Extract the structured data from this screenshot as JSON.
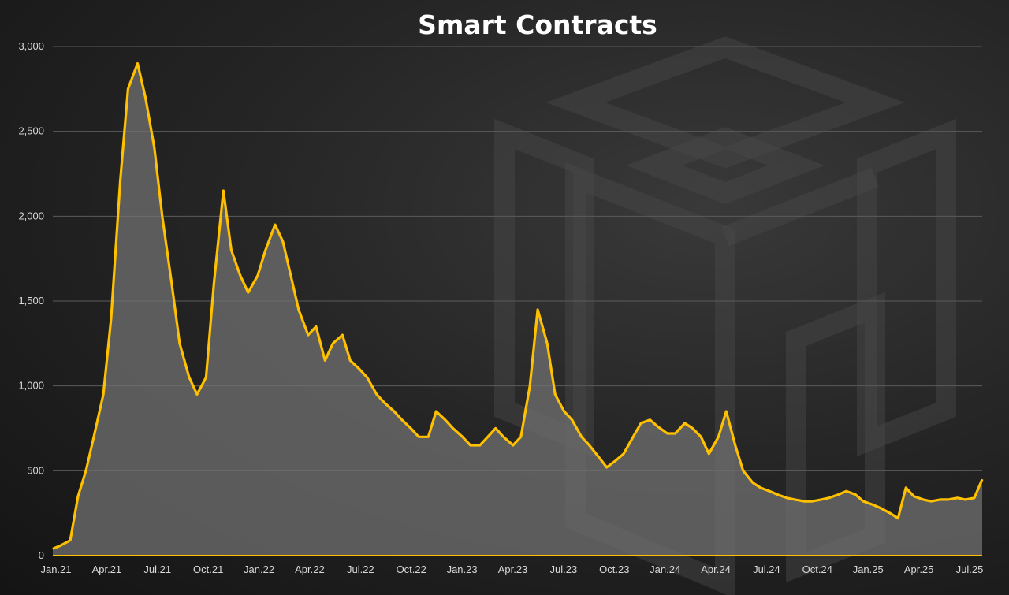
{
  "chart_data": {
    "type": "area",
    "title": "Smart Contracts",
    "xlabel": "",
    "ylabel": "",
    "ylim": [
      0,
      3000
    ],
    "yticks": [
      "0",
      "500",
      "1,000",
      "1,500",
      "2,000",
      "2,500",
      "3,000"
    ],
    "xticks": [
      "Jan.21",
      "Apr.21",
      "Jul.21",
      "Oct.21",
      "Jan.22",
      "Apr.22",
      "Jul.22",
      "Oct.22",
      "Jan.23",
      "Apr.23",
      "Jul.23",
      "Oct.23",
      "Jan.24",
      "Apr.24",
      "Jul.24",
      "Oct.24",
      "Jan.25",
      "Apr.25",
      "Jul.25"
    ],
    "grid": true,
    "legend": "none",
    "series_color": "#FFC000",
    "fill_color": "#707070",
    "x": [
      "2021-01-01",
      "2021-01-15",
      "2021-02-01",
      "2021-02-15",
      "2021-03-01",
      "2021-03-15",
      "2021-04-01",
      "2021-04-15",
      "2021-05-01",
      "2021-05-15",
      "2021-06-01",
      "2021-06-15",
      "2021-07-01",
      "2021-07-15",
      "2021-08-01",
      "2021-08-15",
      "2021-09-01",
      "2021-09-15",
      "2021-10-01",
      "2021-10-15",
      "2021-11-01",
      "2021-11-15",
      "2021-12-01",
      "2021-12-15",
      "2022-01-01",
      "2022-01-15",
      "2022-02-01",
      "2022-02-15",
      "2022-03-01",
      "2022-03-15",
      "2022-04-01",
      "2022-04-15",
      "2022-05-01",
      "2022-05-15",
      "2022-06-01",
      "2022-06-15",
      "2022-07-01",
      "2022-07-15",
      "2022-08-01",
      "2022-08-15",
      "2022-09-01",
      "2022-09-15",
      "2022-10-01",
      "2022-10-15",
      "2022-11-01",
      "2022-11-15",
      "2022-12-01",
      "2022-12-15",
      "2023-01-01",
      "2023-01-15",
      "2023-02-01",
      "2023-02-15",
      "2023-03-01",
      "2023-03-15",
      "2023-04-01",
      "2023-04-15",
      "2023-05-01",
      "2023-05-15",
      "2023-06-01",
      "2023-06-15",
      "2023-07-01",
      "2023-07-15",
      "2023-08-01",
      "2023-08-15",
      "2023-09-01",
      "2023-09-15",
      "2023-10-01",
      "2023-10-15",
      "2023-11-01",
      "2023-11-15",
      "2023-12-01",
      "2023-12-15",
      "2024-01-01",
      "2024-01-15",
      "2024-02-01",
      "2024-02-15",
      "2024-03-01",
      "2024-03-15",
      "2024-04-01",
      "2024-04-15",
      "2024-05-01",
      "2024-05-15",
      "2024-06-01",
      "2024-06-15",
      "2024-07-01",
      "2024-07-15",
      "2024-08-01",
      "2024-08-15",
      "2024-09-01",
      "2024-09-15",
      "2024-10-01",
      "2024-10-15",
      "2024-11-01",
      "2024-11-15",
      "2024-12-01",
      "2024-12-15",
      "2025-01-01",
      "2025-01-15",
      "2025-02-01",
      "2025-02-15",
      "2025-03-01",
      "2025-03-15",
      "2025-04-01",
      "2025-04-15",
      "2025-05-01",
      "2025-05-15",
      "2025-06-01",
      "2025-06-15",
      "2025-07-01",
      "2025-07-15"
    ],
    "values": [
      40,
      60,
      90,
      350,
      500,
      700,
      950,
      1400,
      2200,
      2750,
      2900,
      2700,
      2400,
      2000,
      1600,
      1250,
      1050,
      950,
      1050,
      1600,
      2150,
      1800,
      1650,
      1550,
      1650,
      1800,
      1950,
      1850,
      1650,
      1450,
      1300,
      1350,
      1150,
      1250,
      1300,
      1150,
      1100,
      1050,
      950,
      900,
      850,
      800,
      750,
      700,
      700,
      850,
      800,
      750,
      700,
      650,
      650,
      700,
      750,
      700,
      650,
      700,
      1000,
      1450,
      1250,
      950,
      850,
      800,
      700,
      650,
      580,
      520,
      560,
      600,
      700,
      780,
      800,
      760,
      720,
      720,
      780,
      750,
      700,
      600,
      700,
      850,
      650,
      500,
      430,
      400,
      380,
      360,
      340,
      330,
      320,
      320,
      330,
      340,
      360,
      380,
      360,
      320,
      300,
      280,
      250,
      220,
      400,
      350,
      330,
      320,
      330,
      330,
      340,
      330,
      340,
      450
    ]
  }
}
